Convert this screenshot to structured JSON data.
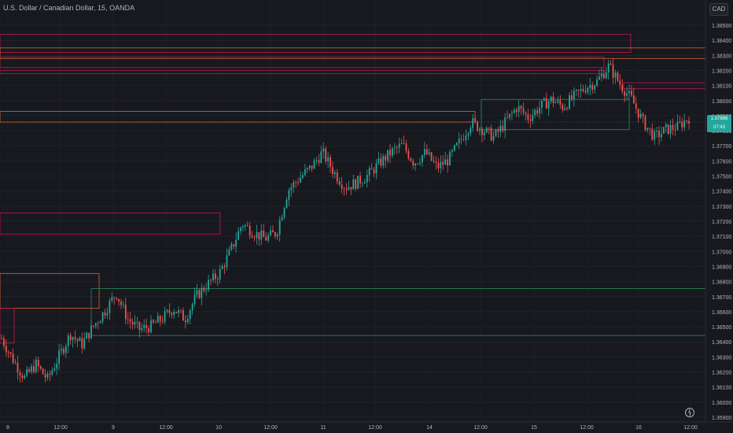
{
  "header": {
    "title": "U.S. Dollar / Canadian Dollar, 15, OANDA",
    "currency_label": "CAD"
  },
  "price_badge": {
    "price": "1.37886",
    "countdown": "07:43"
  },
  "y_axis": {
    "labels": [
      "1.38500",
      "1.38400",
      "1.38300",
      "1.38200",
      "1.38100",
      "1.38000",
      "1.37900",
      "1.37800",
      "1.37700",
      "1.37600",
      "1.37500",
      "1.37400",
      "1.37300",
      "1.37200",
      "1.37100",
      "1.37000",
      "1.36900",
      "1.36800",
      "1.36700",
      "1.36600",
      "1.36500",
      "1.36400",
      "1.36300",
      "1.36200",
      "1.36100",
      "1.36000",
      "1.35900"
    ]
  },
  "x_axis": {
    "labels": [
      "8",
      "12:00",
      "9",
      "12:00",
      "10",
      "12:00",
      "11",
      "12:00",
      "14",
      "12:00",
      "15",
      "12:00",
      "16",
      "12:00"
    ]
  },
  "colors": {
    "background": "#17191f",
    "up": "#26a69a",
    "down": "#ef5350",
    "zone_red": "#c2184b",
    "zone_orange": "#e0622a",
    "zone_green": "#2e8b57"
  },
  "icons": {
    "replay": "replay-icon"
  },
  "chart_data": {
    "type": "candlestick",
    "symbol": "USDCAD",
    "timeframe": "15",
    "ylim": [
      1.359,
      1.385
    ],
    "days": [
      "8",
      "9",
      "10",
      "11",
      "14",
      "15",
      "16"
    ],
    "close_path": [
      [
        0,
        1.3642
      ],
      [
        2,
        1.3628
      ],
      [
        4,
        1.3616
      ],
      [
        6,
        1.3625
      ],
      [
        8,
        1.3615
      ],
      [
        10,
        1.363
      ],
      [
        12,
        1.3645
      ],
      [
        14,
        1.3638
      ],
      [
        16,
        1.365
      ],
      [
        18,
        1.366
      ],
      [
        20,
        1.3672
      ],
      [
        22,
        1.3655
      ],
      [
        24,
        1.3648
      ],
      [
        26,
        1.365
      ],
      [
        28,
        1.3655
      ],
      [
        30,
        1.3662
      ],
      [
        32,
        1.3655
      ],
      [
        34,
        1.367
      ],
      [
        36,
        1.3678
      ],
      [
        38,
        1.3685
      ],
      [
        40,
        1.37
      ],
      [
        42,
        1.3718
      ],
      [
        44,
        1.3712
      ],
      [
        46,
        1.3708
      ],
      [
        48,
        1.3712
      ],
      [
        50,
        1.374
      ],
      [
        52,
        1.3748
      ],
      [
        54,
        1.3755
      ],
      [
        56,
        1.3765
      ],
      [
        58,
        1.3752
      ],
      [
        60,
        1.3742
      ],
      [
        62,
        1.3745
      ],
      [
        64,
        1.375
      ],
      [
        66,
        1.3758
      ],
      [
        68,
        1.3765
      ],
      [
        70,
        1.377
      ],
      [
        72,
        1.3758
      ],
      [
        74,
        1.3765
      ],
      [
        76,
        1.3755
      ],
      [
        78,
        1.376
      ],
      [
        80,
        1.3772
      ],
      [
        82,
        1.3785
      ],
      [
        84,
        1.378
      ],
      [
        86,
        1.3775
      ],
      [
        88,
        1.3785
      ],
      [
        90,
        1.3795
      ],
      [
        92,
        1.3788
      ],
      [
        94,
        1.3795
      ],
      [
        96,
        1.38
      ],
      [
        98,
        1.3795
      ],
      [
        100,
        1.3802
      ],
      [
        102,
        1.3808
      ],
      [
        104,
        1.3812
      ],
      [
        106,
        1.3822
      ],
      [
        108,
        1.381
      ],
      [
        110,
        1.38
      ],
      [
        112,
        1.3785
      ],
      [
        114,
        1.3775
      ],
      [
        116,
        1.378
      ],
      [
        118,
        1.3782
      ],
      [
        120,
        1.3788
      ]
    ],
    "zones": [
      {
        "type": "supply",
        "color": "red",
        "from": 1.3843,
        "to": 1.3831
      },
      {
        "type": "supply",
        "color": "red",
        "from": 1.3828,
        "to": 1.3821
      },
      {
        "type": "supply",
        "color": "red",
        "from": 1.3819,
        "to": 1.3817
      },
      {
        "type": "supply",
        "color": "orange",
        "from": 1.3834,
        "to": 1.3827
      },
      {
        "type": "supply",
        "color": "red",
        "from": 1.3811,
        "to": 1.3807
      },
      {
        "type": "supply",
        "color": "orange",
        "from": 1.3792,
        "to": 1.3785
      },
      {
        "type": "demand",
        "color": "green",
        "from": 1.38,
        "to": 1.378
      },
      {
        "type": "supply",
        "color": "red",
        "from": 1.3725,
        "to": 1.3711
      },
      {
        "type": "supply",
        "color": "orange",
        "from": 1.3685,
        "to": 1.3662
      },
      {
        "type": "demand",
        "color": "green",
        "from": 1.3675,
        "to": 1.3644
      },
      {
        "type": "supply",
        "color": "red",
        "from": 1.3662,
        "to": 1.3639
      }
    ]
  }
}
